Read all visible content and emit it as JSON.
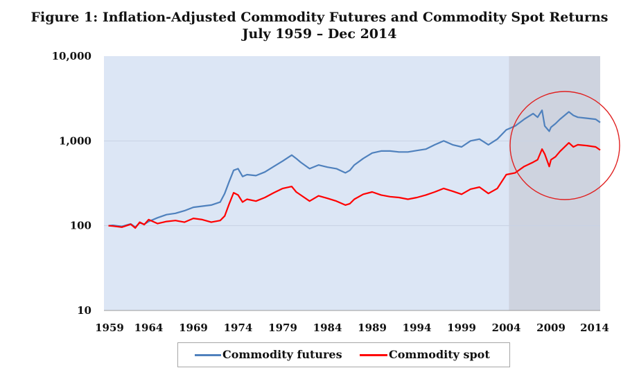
{
  "chart_data": {
    "type": "line",
    "title": "Figure 1: Inflation-Adjusted Commodity Futures and Commodity Spot Returns",
    "subtitle": "July 1959 – Dec 2014",
    "y_scale": "log",
    "ylim": [
      10,
      10000
    ],
    "xlim": [
      1959,
      2014.5
    ],
    "y_ticks": [
      10,
      100,
      1000,
      10000
    ],
    "y_tick_labels": [
      "10",
      "100",
      "1,000",
      "10,000"
    ],
    "x_ticks": [
      1959,
      1964,
      1969,
      1974,
      1979,
      1984,
      1989,
      1994,
      1999,
      2004,
      2009,
      2014
    ],
    "x_tick_labels": [
      "1959",
      "1964",
      "1969",
      "1974",
      "1979",
      "1984",
      "1989",
      "1994",
      "1999",
      "2004",
      "2009",
      "2014"
    ],
    "shaded_period": [
      2004.3,
      2014.5
    ],
    "highlight_circle": "2004–2014 region",
    "legend_position": "bottom",
    "background_color": "#dce6f5",
    "shaded_color": "#ced3df",
    "series": [
      {
        "name": "Commodity futures",
        "color": "#4f81bd",
        "x": [
          1959.5,
          1960,
          1961,
          1962,
          1962.5,
          1963,
          1963.5,
          1964,
          1965,
          1966,
          1967,
          1968,
          1969,
          1970,
          1971,
          1972,
          1972.5,
          1973,
          1973.5,
          1974,
          1974.5,
          1975,
          1976,
          1977,
          1978,
          1979,
          1980,
          1980.5,
          1981,
          1982,
          1983,
          1984,
          1985,
          1986,
          1986.5,
          1987,
          1988,
          1989,
          1990,
          1991,
          1992,
          1993,
          1994,
          1995,
          1996,
          1997,
          1998,
          1999,
          2000,
          2001,
          2002,
          2003,
          2004,
          2005,
          2006,
          2007,
          2007.5,
          2008,
          2008.3,
          2008.8,
          2009,
          2009.5,
          2010,
          2011,
          2011.5,
          2012,
          2013,
          2014,
          2014.5
        ],
        "y": [
          100,
          101,
          98,
          105,
          96,
          108,
          104,
          112,
          124,
          135,
          140,
          150,
          165,
          170,
          175,
          190,
          240,
          330,
          450,
          470,
          380,
          400,
          390,
          430,
          500,
          580,
          680,
          620,
          560,
          470,
          520,
          490,
          470,
          420,
          450,
          520,
          620,
          720,
          760,
          760,
          740,
          740,
          770,
          800,
          900,
          1000,
          900,
          850,
          1000,
          1050,
          900,
          1050,
          1350,
          1500,
          1800,
          2100,
          1900,
          2300,
          1500,
          1300,
          1450,
          1600,
          1800,
          2200,
          2000,
          1900,
          1850,
          1800,
          1650
        ]
      },
      {
        "name": "Commodity spot",
        "color": "#ff0000",
        "x": [
          1959.5,
          1960,
          1961,
          1962,
          1962.5,
          1963,
          1963.5,
          1964,
          1965,
          1966,
          1967,
          1968,
          1969,
          1970,
          1971,
          1972,
          1972.5,
          1973,
          1973.5,
          1974,
          1974.5,
          1975,
          1976,
          1977,
          1978,
          1979,
          1980,
          1980.5,
          1981,
          1982,
          1983,
          1984,
          1985,
          1986,
          1986.5,
          1987,
          1988,
          1989,
          1990,
          1991,
          1992,
          1993,
          1994,
          1995,
          1996,
          1997,
          1998,
          1999,
          2000,
          2001,
          2002,
          2003,
          2004,
          2005,
          2006,
          2007,
          2007.5,
          2008,
          2008.3,
          2008.8,
          2009,
          2009.5,
          2010,
          2011,
          2011.5,
          2012,
          2013,
          2014,
          2014.5
        ],
        "y": [
          100,
          99,
          96,
          104,
          94,
          110,
          103,
          118,
          106,
          112,
          115,
          110,
          122,
          118,
          110,
          115,
          130,
          180,
          245,
          230,
          190,
          205,
          195,
          215,
          245,
          275,
          290,
          250,
          230,
          195,
          225,
          210,
          195,
          175,
          182,
          205,
          235,
          250,
          230,
          220,
          215,
          205,
          215,
          230,
          250,
          275,
          255,
          235,
          270,
          285,
          240,
          275,
          400,
          420,
          500,
          560,
          600,
          800,
          700,
          500,
          600,
          650,
          750,
          950,
          850,
          900,
          880,
          850,
          780
        ]
      }
    ]
  }
}
